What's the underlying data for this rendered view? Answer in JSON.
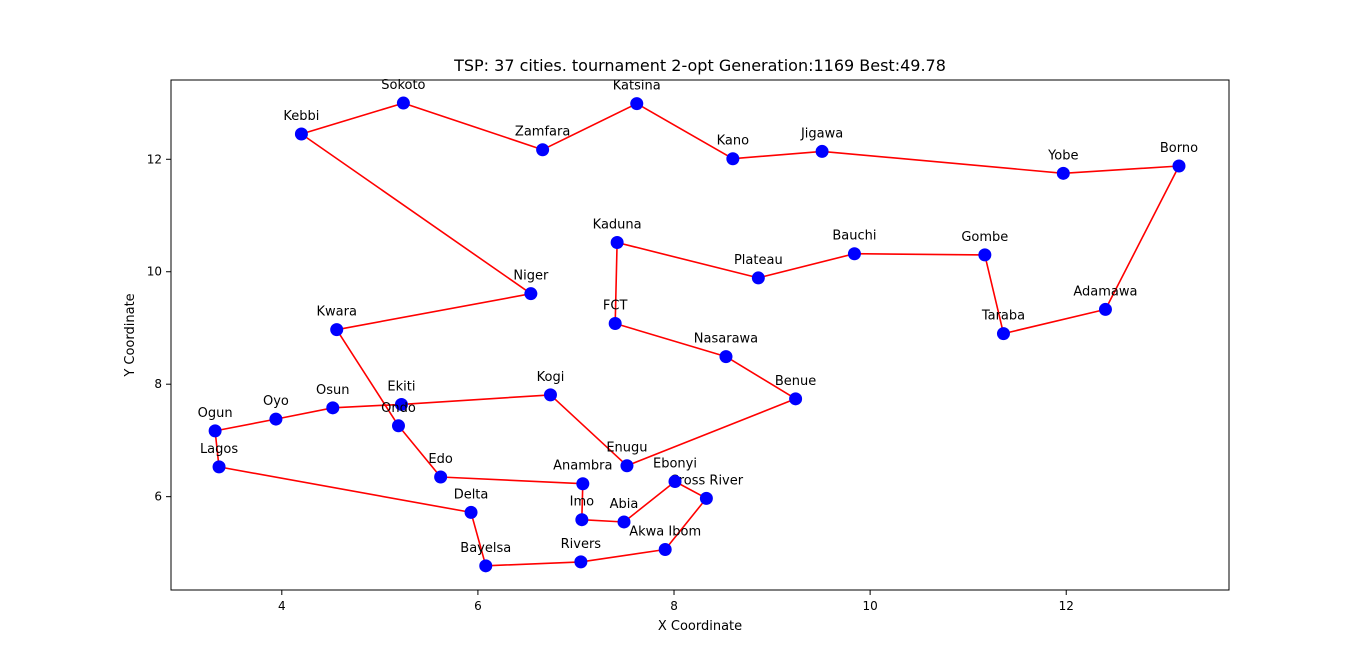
{
  "chart_data": {
    "type": "line",
    "title": "TSP: 37 cities. tournament 2-opt Generation:1169 Best:49.78",
    "xlabel": "X Coordinate",
    "ylabel": "Y Coordinate",
    "xlim": [
      2.87,
      13.66
    ],
    "ylim": [
      4.34,
      13.41
    ],
    "xticks": [
      4,
      6,
      8,
      10,
      12
    ],
    "yticks": [
      6,
      8,
      10,
      12
    ],
    "grid": false,
    "colors": {
      "route": "#ff0000",
      "city": "#0000ff",
      "frame": "#000000"
    },
    "cities": [
      {
        "name": "Kebbi",
        "x": 4.2,
        "y": 12.45
      },
      {
        "name": "Sokoto",
        "x": 5.24,
        "y": 13.0
      },
      {
        "name": "Zamfara",
        "x": 6.66,
        "y": 12.17
      },
      {
        "name": "Katsina",
        "x": 7.62,
        "y": 12.99
      },
      {
        "name": "Kano",
        "x": 8.6,
        "y": 12.01
      },
      {
        "name": "Jigawa",
        "x": 9.51,
        "y": 12.14
      },
      {
        "name": "Yobe",
        "x": 11.97,
        "y": 11.75
      },
      {
        "name": "Borno",
        "x": 13.15,
        "y": 11.88
      },
      {
        "name": "Adamawa",
        "x": 12.4,
        "y": 9.33
      },
      {
        "name": "Taraba",
        "x": 11.36,
        "y": 8.9
      },
      {
        "name": "Gombe",
        "x": 11.17,
        "y": 10.3
      },
      {
        "name": "Bauchi",
        "x": 9.84,
        "y": 10.32
      },
      {
        "name": "Plateau",
        "x": 8.86,
        "y": 9.89
      },
      {
        "name": "Kaduna",
        "x": 7.42,
        "y": 10.52
      },
      {
        "name": "FCT",
        "x": 7.4,
        "y": 9.08
      },
      {
        "name": "Nasarawa",
        "x": 8.53,
        "y": 8.49
      },
      {
        "name": "Benue",
        "x": 9.24,
        "y": 7.74
      },
      {
        "name": "Enugu",
        "x": 7.52,
        "y": 6.55
      },
      {
        "name": "Kogi",
        "x": 6.74,
        "y": 7.81
      },
      {
        "name": "Ekiti",
        "x": 5.22,
        "y": 7.64
      },
      {
        "name": "Osun",
        "x": 4.52,
        "y": 7.58
      },
      {
        "name": "Oyo",
        "x": 3.94,
        "y": 7.38
      },
      {
        "name": "Ogun",
        "x": 3.32,
        "y": 7.17
      },
      {
        "name": "Lagos",
        "x": 3.36,
        "y": 6.53
      },
      {
        "name": "Delta",
        "x": 5.93,
        "y": 5.72
      },
      {
        "name": "Bayelsa",
        "x": 6.08,
        "y": 4.77
      },
      {
        "name": "Rivers",
        "x": 7.05,
        "y": 4.84
      },
      {
        "name": "Akwa Ibom",
        "x": 7.91,
        "y": 5.06
      },
      {
        "name": "Cross River",
        "x": 8.33,
        "y": 5.97
      },
      {
        "name": "Ebonyi",
        "x": 8.01,
        "y": 6.27
      },
      {
        "name": "Abia",
        "x": 7.49,
        "y": 5.55
      },
      {
        "name": "Imo",
        "x": 7.06,
        "y": 5.59
      },
      {
        "name": "Anambra",
        "x": 7.07,
        "y": 6.23
      },
      {
        "name": "Edo",
        "x": 5.62,
        "y": 6.35
      },
      {
        "name": "Ondo",
        "x": 5.19,
        "y": 7.26
      },
      {
        "name": "Kwara",
        "x": 4.56,
        "y": 8.97
      },
      {
        "name": "Niger",
        "x": 6.54,
        "y": 9.61
      }
    ]
  }
}
